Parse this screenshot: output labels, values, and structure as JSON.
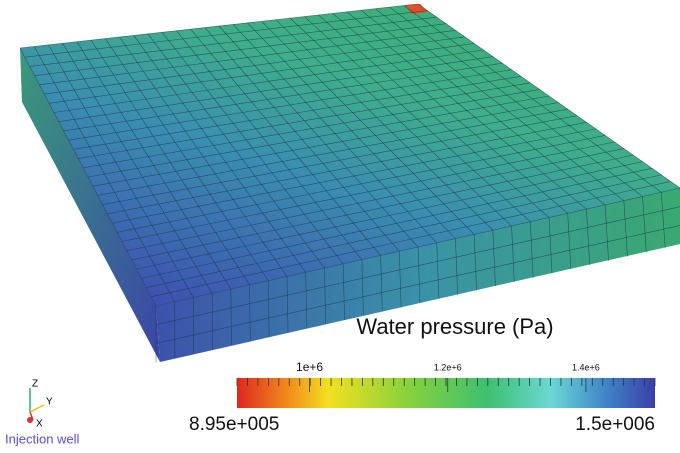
{
  "scene": {
    "colorbar": {
      "title": "Water pressure (Pa)",
      "range": [
        {
          "value": 895000,
          "label": "8.95e+005"
        },
        {
          "value": 1500000,
          "label": "1.5e+006"
        }
      ],
      "ticks": [
        {
          "value": 1000000,
          "label": "1e+6"
        },
        {
          "value": 1200000,
          "label": "1.2e+6"
        },
        {
          "value": 1400000,
          "label": "1.4e+6"
        }
      ]
    },
    "axes": {
      "z": "Z",
      "y": "Y",
      "x": "X"
    },
    "caption": "Injection well"
  }
}
